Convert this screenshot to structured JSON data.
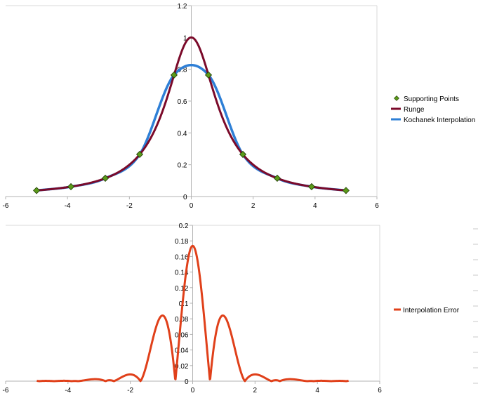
{
  "chart_data": [
    {
      "type": "line",
      "xlim": [
        -6,
        6
      ],
      "ylim": [
        0,
        1.2
      ],
      "x_ticks": [
        "-6",
        "-4",
        "-2",
        "0",
        "2",
        "4",
        "6"
      ],
      "y_ticks": [
        "0",
        "0.2",
        "0.4",
        "0.6",
        "0.8",
        "1",
        "1.2"
      ],
      "grid": false,
      "legend_position": "right",
      "series": [
        {
          "name": "Supporting Points",
          "kind": "markers",
          "marker": "diamond",
          "color": "#5b9a1a",
          "x": [
            -5,
            -3.889,
            -2.778,
            -1.667,
            -0.556,
            0.556,
            1.667,
            2.778,
            3.889,
            5
          ],
          "y": [
            0.038,
            0.062,
            0.115,
            0.265,
            0.764,
            0.764,
            0.265,
            0.115,
            0.062,
            0.038
          ]
        },
        {
          "name": "Runge",
          "kind": "line",
          "color": "#7b0a2a",
          "function": "1/(1+x^2)",
          "domain": [
            -5,
            5
          ]
        },
        {
          "name": "Kochanek Interpolation",
          "kind": "line",
          "color": "#2e7fd6",
          "function": "interpolation through supporting points",
          "domain": [
            -5,
            5
          ]
        }
      ]
    },
    {
      "type": "line",
      "xlim": [
        -6,
        6
      ],
      "ylim": [
        0,
        0.2
      ],
      "x_ticks": [
        "-6",
        "-4",
        "-2",
        "0",
        "2",
        "4",
        "6"
      ],
      "y_ticks": [
        "0",
        "0.02",
        "0.04",
        "0.06",
        "0.08",
        "0.1",
        "0.12",
        "0.14",
        "0.16",
        "0.18",
        "0.2"
      ],
      "grid": false,
      "legend_position": "right",
      "series": [
        {
          "name": "Interpolation Error",
          "kind": "line",
          "color": "#e0401a",
          "function": "|Runge - Kochanek Interpolation|",
          "domain": [
            -5,
            5
          ],
          "key_points": {
            "x": [
              0,
              -0.95,
              0.95,
              -1.9,
              1.9
            ],
            "y": [
              0.173,
              0.084,
              0.084,
              0.009,
              0.009
            ]
          }
        }
      ]
    }
  ]
}
